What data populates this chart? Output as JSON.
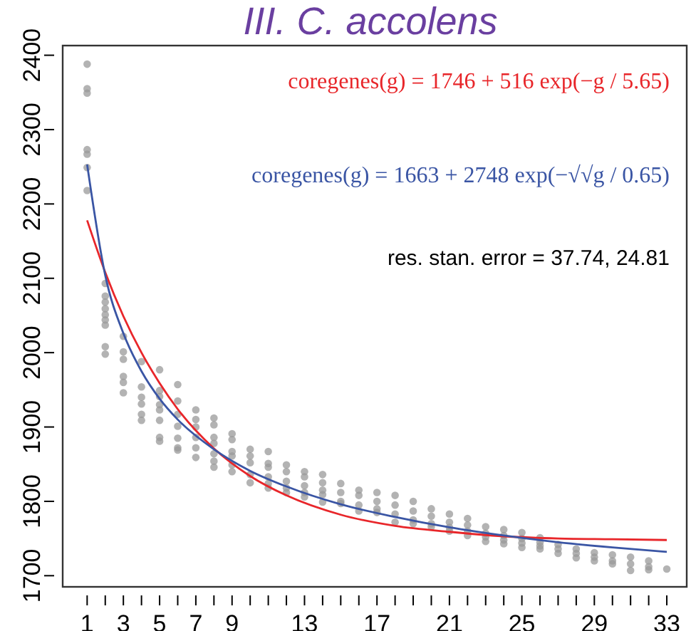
{
  "chart_data": {
    "type": "scatter",
    "title": "III. C. accolens",
    "marker": "circle",
    "grid": false,
    "xlim": [
      -0.35,
      34.1
    ],
    "ylim": [
      1685,
      2413
    ],
    "xticks": [
      1,
      {
        "value": 2,
        "label": null
      },
      3,
      {
        "value": 4,
        "label": null
      },
      5,
      {
        "value": 6,
        "label": null
      },
      7,
      {
        "value": 8,
        "label": null
      },
      9,
      {
        "value": 10,
        "label": null
      },
      {
        "value": 11,
        "label": null
      },
      {
        "value": 12,
        "label": null
      },
      13,
      {
        "value": 14,
        "label": null
      },
      {
        "value": 15,
        "label": null
      },
      {
        "value": 16,
        "label": null
      },
      17,
      {
        "value": 18,
        "label": null
      },
      {
        "value": 19,
        "label": null
      },
      {
        "value": 20,
        "label": null
      },
      21,
      {
        "value": 22,
        "label": null
      },
      {
        "value": 23,
        "label": null
      },
      {
        "value": 24,
        "label": null
      },
      25,
      {
        "value": 26,
        "label": null
      },
      {
        "value": 27,
        "label": null
      },
      {
        "value": 28,
        "label": null
      },
      29,
      {
        "value": 30,
        "label": null
      },
      {
        "value": 31,
        "label": null
      },
      {
        "value": 32,
        "label": null
      },
      33
    ],
    "yticks": [
      1700,
      1800,
      1900,
      2000,
      2100,
      2200,
      2300,
      2400
    ],
    "annotations": [
      "coregenes(g) = 1746 + 516 exp(−g / 5.65)",
      "coregenes(g) = 1663 + 2748 exp(−√√g / 0.65)",
      "res. stan. error = 37.74, 24.81"
    ],
    "series": [
      {
        "color": "#999999",
        "x": [
          1,
          1,
          1,
          1,
          1,
          1,
          1,
          2,
          2,
          2,
          2,
          2,
          2,
          2,
          2,
          2,
          3,
          3,
          3,
          3,
          3,
          3,
          4,
          4,
          4,
          4,
          4,
          4,
          5,
          5,
          5,
          5,
          5,
          5,
          5,
          5,
          6,
          6,
          6,
          6,
          6,
          6,
          6,
          7,
          7,
          7,
          7,
          7,
          7,
          8,
          8,
          8,
          8,
          8,
          8,
          8,
          9,
          9,
          9,
          9,
          9,
          9,
          10,
          10,
          10,
          10,
          10,
          11,
          11,
          11,
          11,
          11,
          11,
          12,
          12,
          12,
          12,
          12,
          13,
          13,
          13,
          13,
          13,
          14,
          14,
          14,
          14,
          14,
          15,
          15,
          15,
          15,
          16,
          16,
          16,
          16,
          17,
          17,
          17,
          17,
          18,
          18,
          18,
          18,
          19,
          19,
          19,
          19,
          20,
          20,
          20,
          20,
          21,
          21,
          21,
          21,
          22,
          22,
          22,
          22,
          23,
          23,
          23,
          23,
          24,
          24,
          24,
          24,
          25,
          25,
          25,
          25,
          26,
          26,
          26,
          26,
          27,
          27,
          27,
          28,
          28,
          28,
          29,
          29,
          29,
          30,
          30,
          30,
          31,
          31,
          31,
          32,
          32,
          32,
          33
        ],
        "values": [
          2388,
          2355,
          2349,
          2273,
          2267,
          2249,
          2218,
          2093,
          2076,
          2068,
          2059,
          2051,
          2044,
          2037,
          2008,
          1998,
          2022,
          2001,
          1991,
          1968,
          1960,
          1946,
          1988,
          1954,
          1940,
          1931,
          1917,
          1909,
          1977,
          1949,
          1941,
          1930,
          1923,
          1909,
          1886,
          1881,
          1957,
          1935,
          1917,
          1901,
          1885,
          1872,
          1869,
          1923,
          1910,
          1900,
          1886,
          1872,
          1859,
          1912,
          1903,
          1886,
          1878,
          1864,
          1854,
          1846,
          1891,
          1883,
          1867,
          1861,
          1849,
          1840,
          1870,
          1861,
          1852,
          1836,
          1825,
          1867,
          1851,
          1846,
          1833,
          1824,
          1818,
          1849,
          1840,
          1827,
          1818,
          1812,
          1840,
          1833,
          1821,
          1812,
          1806,
          1836,
          1825,
          1815,
          1809,
          1799,
          1824,
          1812,
          1800,
          1797,
          1815,
          1808,
          1795,
          1787,
          1812,
          1800,
          1790,
          1785,
          1808,
          1795,
          1783,
          1772,
          1800,
          1787,
          1775,
          1770,
          1790,
          1780,
          1770,
          1766,
          1783,
          1772,
          1765,
          1760,
          1777,
          1768,
          1760,
          1754,
          1766,
          1757,
          1752,
          1746,
          1762,
          1754,
          1748,
          1743,
          1758,
          1750,
          1744,
          1738,
          1751,
          1745,
          1740,
          1736,
          1742,
          1736,
          1730,
          1736,
          1730,
          1724,
          1731,
          1725,
          1720,
          1728,
          1720,
          1716,
          1725,
          1716,
          1707,
          1720,
          1712,
          1708,
          1709
        ]
      },
      {
        "type": "line",
        "marker": "none",
        "color": "#e8262a",
        "x": [
          1,
          2,
          3,
          4,
          5,
          6,
          8,
          10,
          12,
          15,
          18,
          21,
          24,
          27,
          30,
          33
        ],
        "values": [
          2178,
          2108,
          2049,
          2000,
          1959,
          1924,
          1871,
          1834,
          1808,
          1782,
          1767,
          1759,
          1753,
          1750,
          1749,
          1748
        ]
      },
      {
        "type": "line",
        "marker": "none",
        "color": "#3a55a4",
        "x": [
          1,
          2,
          3,
          4,
          5,
          6,
          8,
          10,
          12,
          15,
          18,
          21,
          24,
          27,
          30,
          33
        ],
        "values": [
          2253,
          2104,
          2026,
          1975,
          1938,
          1910,
          1870,
          1841,
          1820,
          1796,
          1779,
          1765,
          1754,
          1745,
          1738,
          1732
        ]
      }
    ]
  }
}
